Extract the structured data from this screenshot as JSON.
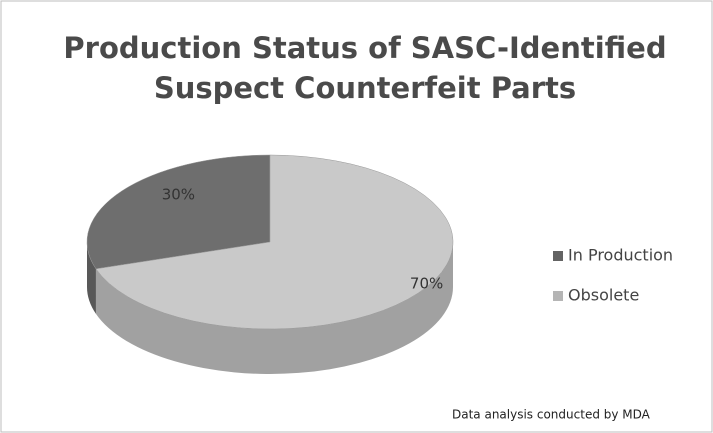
{
  "chart_data": {
    "type": "pie",
    "title": [
      "Production Status of SASC-Identified",
      "Suspect Counterfeit Parts"
    ],
    "categories": [
      "In Production",
      "Obsolete"
    ],
    "values": [
      30,
      70
    ],
    "value_labels": [
      "30%",
      "70%"
    ],
    "colors": [
      "#6e6e6e",
      "#c9c9c9"
    ],
    "legend": "right",
    "annotation": "Data analysis conducted by MDA"
  }
}
